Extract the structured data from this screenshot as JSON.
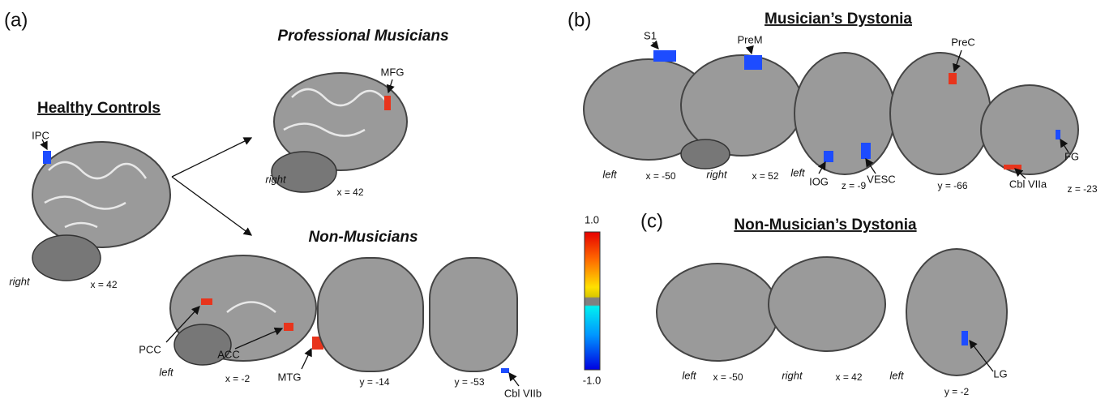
{
  "panel_a": {
    "label": "(a)",
    "healthy_controls": {
      "title": "Healthy Controls",
      "region": "IPC",
      "side": "right",
      "slice": "x = 42"
    },
    "professional_musicians": {
      "title": "Professional Musicians",
      "region": "MFG",
      "side": "right",
      "slice": "x = 42"
    },
    "non_musicians": {
      "title": "Non-Musicians",
      "regions": [
        "PCC",
        "ACC",
        "MTG",
        "Cbl VIIb"
      ],
      "side": "left",
      "slices": [
        "x = -2",
        "y = -14",
        "y = -53"
      ]
    }
  },
  "panel_b": {
    "label": "(b)",
    "title": "Musician’s Dystonia",
    "regions": [
      "S1",
      "PreM",
      "PreC",
      "IOG",
      "VESC",
      "Cbl VIIa",
      "FG"
    ],
    "sides": [
      "left",
      "right",
      "left"
    ],
    "slices": [
      "x = -50",
      "x = 52",
      "z = -9",
      "y = -66",
      "z = -23"
    ]
  },
  "colorbar": {
    "max": "1.0",
    "min": "-1.0"
  },
  "panel_c": {
    "label": "(c)",
    "title": "Non-Musician’s Dystonia",
    "region": "LG",
    "sides": [
      "left",
      "right",
      "left"
    ],
    "slices": [
      "x = -50",
      "x = 42",
      "y = -2"
    ]
  }
}
